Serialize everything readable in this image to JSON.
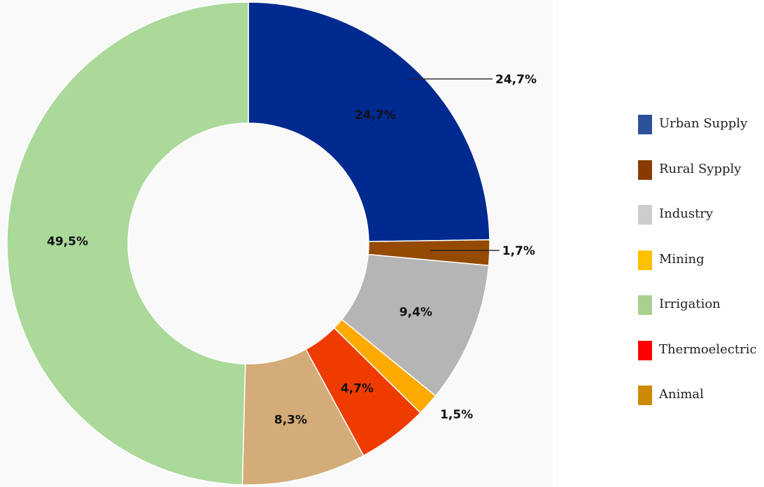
{
  "chart_data": {
    "type": "pie",
    "categories": [
      "Urban Supply",
      "Rural Sypply",
      "Industry",
      "Mining",
      "Irrigation",
      "Thermoelectric",
      "Animal"
    ],
    "values": [
      24.7,
      1.7,
      9.4,
      1.5,
      49.5,
      4.7,
      8.3
    ],
    "value_labels": [
      "24,7%",
      "1,7%",
      "9,4%",
      "1,5%",
      "49,5%",
      "4,7%",
      "8,3%"
    ],
    "slice_order": [
      0,
      1,
      2,
      3,
      5,
      6,
      4
    ],
    "inner_labels": [
      "24,7%",
      "",
      "9,4%",
      "",
      "49,5%",
      "4,7%",
      "8,3%"
    ],
    "outer_labels": [
      "24,7%",
      "1,7%",
      "",
      "1,5%",
      "",
      "",
      ""
    ],
    "slice_colors": [
      "#002a8f",
      "#944a00",
      "#b5b5b5",
      "#ffaa00",
      "#aad99a",
      "#ef3b00",
      "#d4ac78"
    ],
    "legend_colors": [
      "#2d529c",
      "#8a3a00",
      "#cccccc",
      "#ffc000",
      "#a9d08e",
      "#ff0000",
      "#cc8a00"
    ],
    "donut": true,
    "legend_position": "right",
    "title": "",
    "xlabel": "",
    "ylabel": ""
  }
}
